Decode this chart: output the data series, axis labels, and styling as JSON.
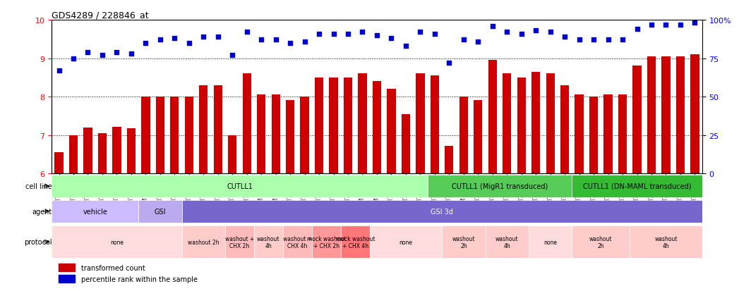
{
  "title": "GDS4289 / 228846_at",
  "samples": [
    "GSM731500",
    "GSM731501",
    "GSM731502",
    "GSM731503",
    "GSM731504",
    "GSM731505",
    "GSM731518",
    "GSM731519",
    "GSM731520",
    "GSM731506",
    "GSM731507",
    "GSM731508",
    "GSM731509",
    "GSM731510",
    "GSM731511",
    "GSM731512",
    "GSM731513",
    "GSM731514",
    "GSM731515",
    "GSM731516",
    "GSM731517",
    "GSM731521",
    "GSM731522",
    "GSM731523",
    "GSM731524",
    "GSM731525",
    "GSM731526",
    "GSM731527",
    "GSM731528",
    "GSM731529",
    "GSM731531",
    "GSM731532",
    "GSM731533",
    "GSM731534",
    "GSM731535",
    "GSM731536",
    "GSM731537",
    "GSM731538",
    "GSM731539",
    "GSM731540",
    "GSM731541",
    "GSM731542",
    "GSM731543",
    "GSM731544",
    "GSM731545"
  ],
  "bar_values": [
    6.55,
    7.0,
    7.2,
    7.05,
    7.22,
    7.18,
    8.0,
    8.0,
    8.0,
    8.0,
    8.3,
    8.3,
    7.0,
    8.6,
    8.05,
    8.05,
    7.9,
    8.0,
    8.5,
    8.5,
    8.5,
    8.6,
    8.4,
    8.2,
    7.55,
    8.6,
    8.55,
    6.72,
    8.0,
    7.9,
    8.95,
    8.6,
    8.5,
    8.65,
    8.6,
    8.3,
    8.05,
    8.0,
    8.05,
    8.05,
    8.8,
    9.05,
    9.05,
    9.05,
    9.1
  ],
  "dot_values": [
    67,
    75,
    79,
    77,
    79,
    78,
    85,
    87,
    88,
    85,
    89,
    89,
    77,
    92,
    87,
    87,
    85,
    86,
    91,
    91,
    91,
    92,
    90,
    88,
    83,
    92,
    91,
    72,
    87,
    86,
    96,
    92,
    91,
    93,
    92,
    89,
    87,
    87,
    87,
    87,
    94,
    97,
    97,
    97,
    98
  ],
  "ylim_left": [
    6,
    10
  ],
  "ylim_right": [
    0,
    100
  ],
  "yticks_left": [
    6,
    7,
    8,
    9,
    10
  ],
  "yticks_right": [
    0,
    25,
    50,
    75,
    100
  ],
  "bar_color": "#cc0000",
  "dot_color": "#0000cc",
  "grid_color": "#000000",
  "cell_line_sections": [
    {
      "label": "CUTLL1",
      "start": 0,
      "end": 26,
      "color": "#aaffaa"
    },
    {
      "label": "CUTLL1 (MigR1 transduced)",
      "start": 26,
      "end": 36,
      "color": "#55cc55"
    },
    {
      "label": "CUTLL1 (DN-MAML transduced)",
      "start": 36,
      "end": 45,
      "color": "#33bb33"
    }
  ],
  "agent_sections": [
    {
      "label": "vehicle",
      "start": 0,
      "end": 6,
      "color": "#ccbbff"
    },
    {
      "label": "GSI",
      "start": 6,
      "end": 9,
      "color": "#bbaaee"
    },
    {
      "label": "GSI 3d",
      "start": 9,
      "end": 45,
      "color": "#7766cc"
    }
  ],
  "protocol_sections": [
    {
      "label": "none",
      "start": 0,
      "end": 9,
      "color": "#ffdddd"
    },
    {
      "label": "washout 2h",
      "start": 9,
      "end": 12,
      "color": "#ffcccc"
    },
    {
      "label": "washout +\nCHX 2h",
      "start": 12,
      "end": 14,
      "color": "#ffbbbb"
    },
    {
      "label": "washout\n4h",
      "start": 14,
      "end": 16,
      "color": "#ffcccc"
    },
    {
      "label": "washout +\nCHX 4h",
      "start": 16,
      "end": 18,
      "color": "#ffbbbb"
    },
    {
      "label": "mock washout\n+ CHX 2h",
      "start": 18,
      "end": 20,
      "color": "#ff9999"
    },
    {
      "label": "mock washout\n+ CHX 4h",
      "start": 20,
      "end": 22,
      "color": "#ff7777"
    },
    {
      "label": "none",
      "start": 22,
      "end": 27,
      "color": "#ffdddd"
    },
    {
      "label": "washout\n2h",
      "start": 27,
      "end": 30,
      "color": "#ffcccc"
    },
    {
      "label": "washout\n4h",
      "start": 30,
      "end": 33,
      "color": "#ffcccc"
    },
    {
      "label": "none",
      "start": 33,
      "end": 36,
      "color": "#ffdddd"
    },
    {
      "label": "washout\n2h",
      "start": 36,
      "end": 40,
      "color": "#ffcccc"
    },
    {
      "label": "washout\n4h",
      "start": 40,
      "end": 45,
      "color": "#ffcccc"
    }
  ]
}
